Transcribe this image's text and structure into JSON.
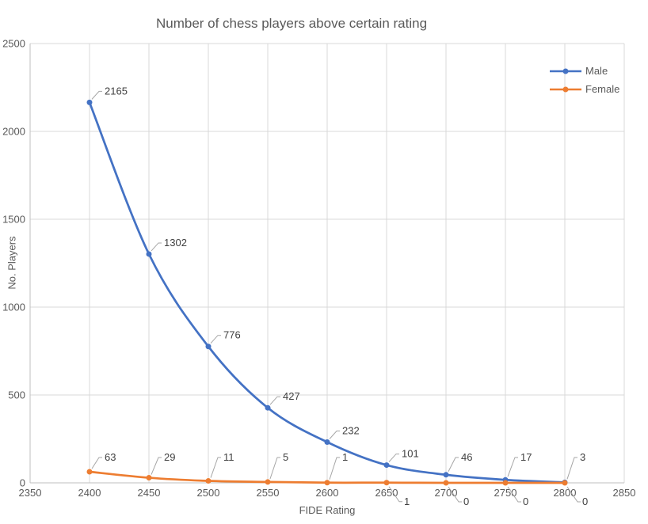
{
  "chart_data": {
    "type": "line",
    "title": "Number of chess players above certain rating",
    "xlabel": "FIDE Rating",
    "ylabel": "No. Players",
    "x": [
      2400,
      2450,
      2500,
      2550,
      2600,
      2650,
      2700,
      2750,
      2800
    ],
    "series": [
      {
        "name": "Male",
        "color": "#4472C4",
        "values": [
          2165,
          1302,
          776,
          427,
          232,
          101,
          46,
          17,
          3
        ],
        "label_side": [
          "above",
          "above",
          "above",
          "above",
          "above",
          "above",
          "above",
          "above",
          "above"
        ]
      },
      {
        "name": "Female",
        "color": "#ED7D31",
        "values": [
          63,
          29,
          11,
          5,
          1,
          1,
          0,
          0,
          0
        ],
        "label_side": [
          "above",
          "above",
          "above",
          "above",
          "above",
          "below",
          "below",
          "below",
          "below"
        ]
      }
    ],
    "xlim": [
      2350,
      2850
    ],
    "ylim": [
      0,
      2500
    ],
    "x_ticks": [
      2350,
      2400,
      2450,
      2500,
      2550,
      2600,
      2650,
      2700,
      2750,
      2800,
      2850
    ],
    "y_ticks": [
      0,
      500,
      1000,
      1500,
      2000,
      2500
    ],
    "grid": true,
    "smooth": true,
    "marker": "circle",
    "data_labels": true,
    "legend_position": "top-right",
    "legend": [
      "Male",
      "Female"
    ]
  },
  "colors": {
    "male": "#4472C4",
    "female": "#ED7D31",
    "gridline": "#D9D9D9",
    "axis_line": "#BFBFBF",
    "tick_text": "#595959",
    "title_text": "#595959",
    "data_label_text": "#404040",
    "leader_line": "#A6A6A6",
    "background": "#FFFFFF"
  }
}
